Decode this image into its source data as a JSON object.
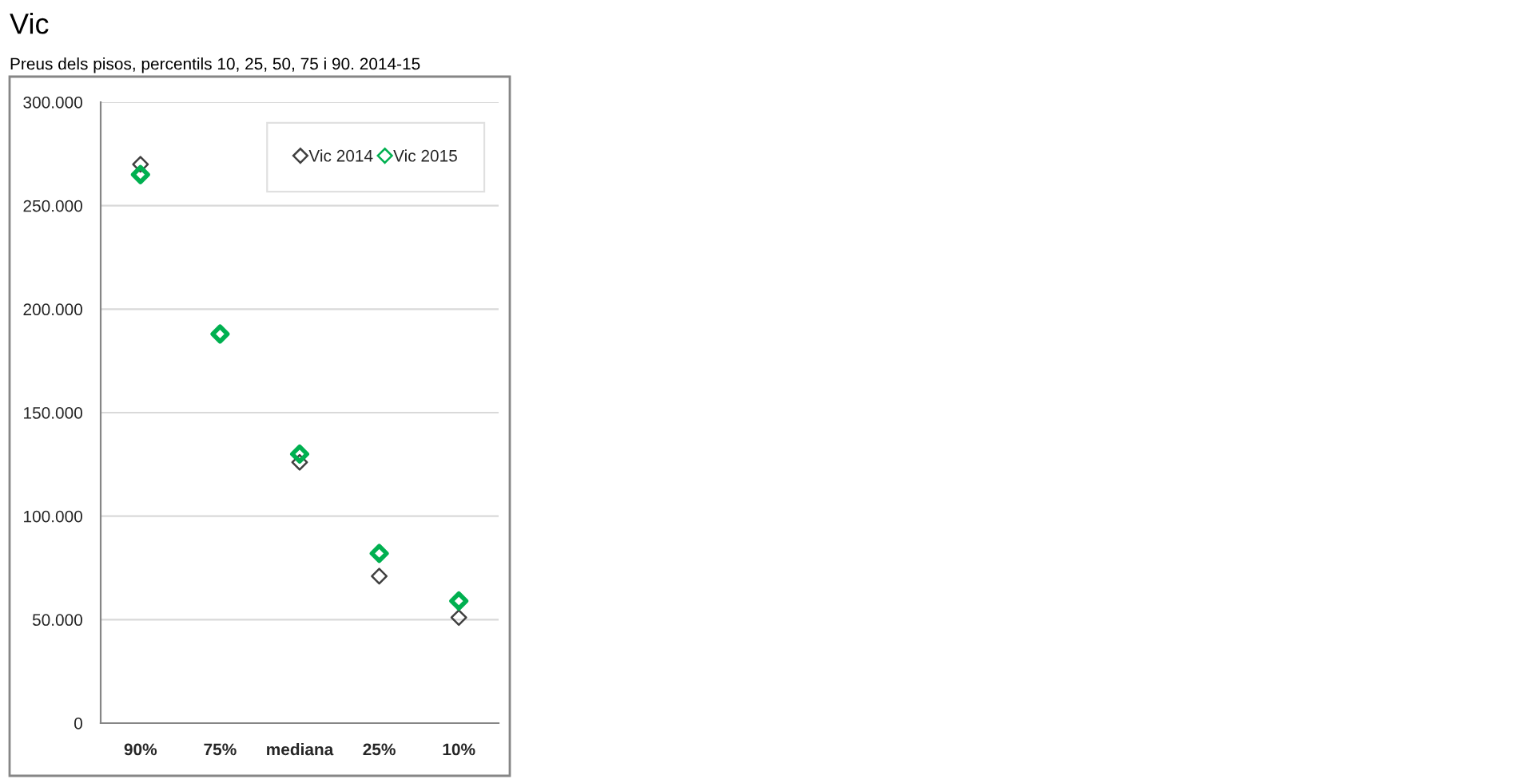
{
  "chart_data": {
    "type": "scatter",
    "title": "Vic",
    "subtitle": "Preus dels pisos, percentils 10, 25, 50, 75 i 90. 2014-15",
    "categories": [
      "90%",
      "75%",
      "mediana",
      "25%",
      "10%"
    ],
    "series": [
      {
        "name": "Vic 2014",
        "color": "#404040",
        "values": [
          270000,
          null,
          126000,
          71000,
          51000
        ]
      },
      {
        "name": "Vic 2015",
        "color": "#00b050",
        "values": [
          265000,
          188000,
          130000,
          82000,
          59000
        ]
      }
    ],
    "ylim": [
      0,
      300000
    ],
    "yticks": [
      0,
      {
        "value": 50000,
        "label": "50.000"
      },
      {
        "value": 100000,
        "label": "100.000"
      },
      {
        "value": 150000,
        "label": "150.000"
      },
      {
        "value": 200000,
        "label": "200.000"
      },
      {
        "value": 250000,
        "label": "250.000"
      },
      {
        "value": 300000,
        "label": "300.000"
      }
    ],
    "grid": "y",
    "legend": "top right",
    "marker": "diamond"
  }
}
